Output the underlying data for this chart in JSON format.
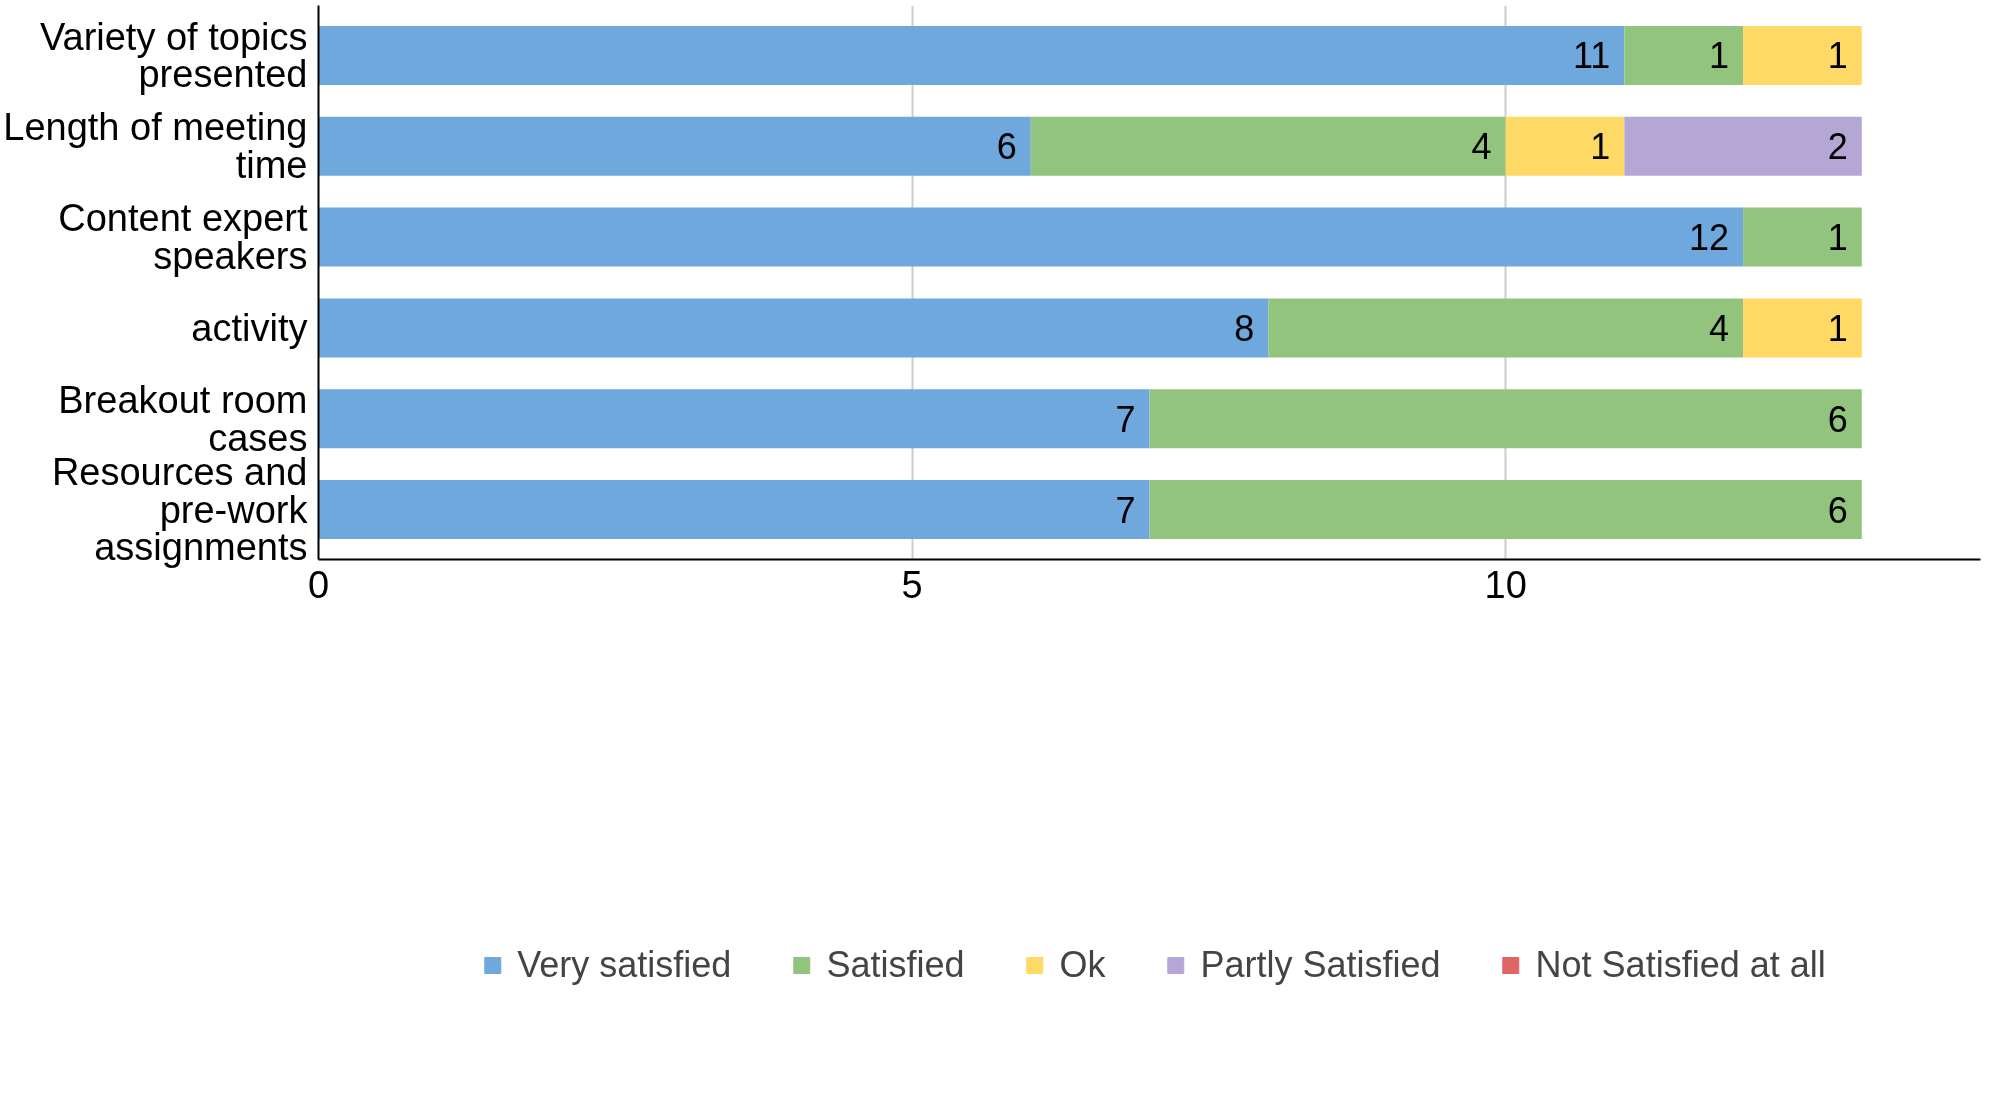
{
  "chart_data": {
    "type": "bar",
    "orientation": "horizontal",
    "stacked": true,
    "categories": [
      "Variety of topics presented",
      "Length of meeting time",
      "Content expert speakers",
      "activity",
      "Breakout room cases",
      "Resources and pre-work assignments"
    ],
    "series": [
      {
        "name": "Very satisfied",
        "color": "#6fa8dc",
        "values": [
          11,
          6,
          12,
          8,
          7,
          7
        ]
      },
      {
        "name": "Satisfied",
        "color": "#93c47d",
        "values": [
          1,
          4,
          1,
          4,
          6,
          6
        ]
      },
      {
        "name": "Ok",
        "color": "#ffd966",
        "values": [
          1,
          1,
          null,
          1,
          null,
          null
        ]
      },
      {
        "name": "Partly Satisfied",
        "color": "#b4a7d6",
        "values": [
          null,
          2,
          null,
          null,
          null,
          null
        ]
      },
      {
        "name": "Not Satisfied at all",
        "color": "#e06666",
        "values": [
          null,
          null,
          null,
          null,
          null,
          null
        ]
      }
    ],
    "xlim": [
      0,
      14
    ],
    "xticks": [
      0,
      5,
      10
    ],
    "grid": "x",
    "legend": "bottom",
    "data_labels": true
  }
}
